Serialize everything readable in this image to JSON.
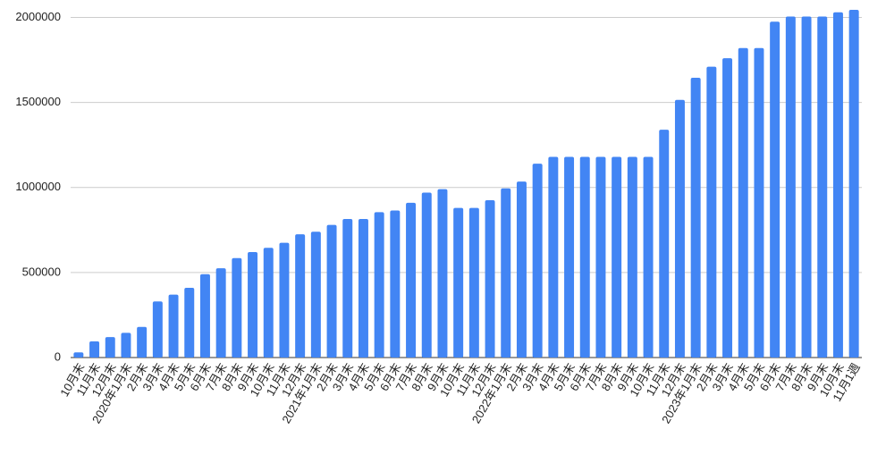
{
  "chart_data": {
    "type": "bar",
    "categories": [
      "10月末",
      "11月末",
      "12月末",
      "2020年1月末",
      "2月末",
      "3月末",
      "4月末",
      "5月末",
      "6月末",
      "7月末",
      "8月末",
      "9月末",
      "10月末",
      "11月末",
      "12月末",
      "2021年1月末",
      "2月末",
      "3月末",
      "4月末",
      "5月末",
      "6月末",
      "7月末",
      "8月末",
      "9月末",
      "10月末",
      "11月末",
      "12月末",
      "2022年1月末",
      "2月末",
      "3月末",
      "4月末",
      "5月末",
      "6月末",
      "7月末",
      "8月末",
      "9月末",
      "10月末",
      "11月末",
      "12月末",
      "2023年1月末",
      "2月末",
      "3月末",
      "4月末",
      "5月末",
      "6月末",
      "7月末",
      "8月末",
      "9月末",
      "10月末",
      "11月1週"
    ],
    "values": [
      30000,
      95000,
      120000,
      145000,
      180000,
      330000,
      370000,
      410000,
      490000,
      525000,
      585000,
      620000,
      645000,
      675000,
      725000,
      740000,
      780000,
      815000,
      815000,
      855000,
      865000,
      910000,
      970000,
      990000,
      880000,
      880000,
      925000,
      995000,
      1035000,
      1140000,
      1180000,
      1180000,
      1180000,
      1180000,
      1180000,
      1180000,
      1180000,
      1340000,
      1515000,
      1645000,
      1710000,
      1760000,
      1820000,
      1820000,
      1975000,
      2005000,
      2005000,
      2005000,
      2030000,
      2045000
    ],
    "color": "#4285f4",
    "ylim": [
      0,
      2050000
    ],
    "yticks": [
      0,
      500000,
      1000000,
      1500000,
      2000000
    ],
    "grid": true
  }
}
